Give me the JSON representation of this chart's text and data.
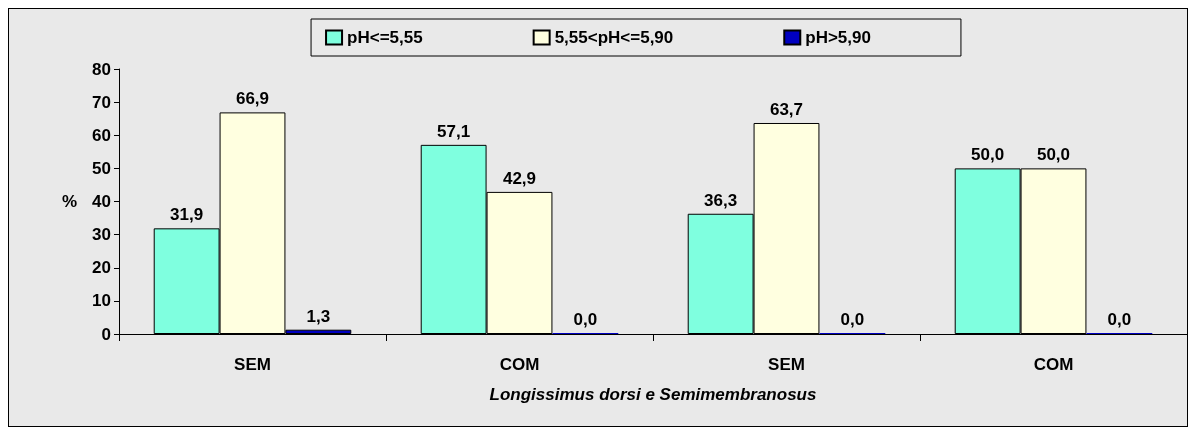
{
  "chart_data": {
    "type": "bar",
    "categories": [
      "SEM",
      "COM",
      "SEM",
      "COM"
    ],
    "xlabel": "Longissimus dorsi e Semimembranosus",
    "ylabel": "%",
    "series": [
      {
        "name": "pH<=5,55",
        "color": "#7fffdf",
        "values": [
          31.9,
          57.1,
          36.3,
          50.0
        ],
        "value_labels": [
          "31,9",
          "57,1",
          "36,3",
          "50,0"
        ]
      },
      {
        "name": "5,55<pH<=5,90",
        "color": "#ffffe0",
        "values": [
          66.9,
          42.9,
          63.7,
          50.0
        ],
        "value_labels": [
          "66,9",
          "42,9",
          "63,7",
          "50,0"
        ]
      },
      {
        "name": "pH>5,90",
        "color": "#0000c0",
        "values": [
          1.3,
          0.0,
          0.0,
          0.0
        ],
        "value_labels": [
          "1,3",
          "0,0",
          "0,0",
          "0,0"
        ]
      }
    ],
    "ylim": [
      0,
      80
    ],
    "yticks": [
      0,
      10,
      20,
      30,
      40,
      50,
      60,
      70,
      80
    ],
    "grid": false,
    "legend": "top"
  }
}
